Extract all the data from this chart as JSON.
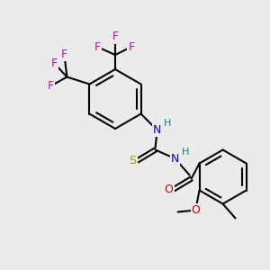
{
  "bg_color": "#ebebeb",
  "bond_color": "#000000",
  "bond_lw": 1.5,
  "atom_colors": {
    "F": "#dd00aa",
    "N": "#0000cc",
    "O": "#cc0000",
    "S": "#999900",
    "H_teal": "#008888",
    "C": "#000000"
  }
}
